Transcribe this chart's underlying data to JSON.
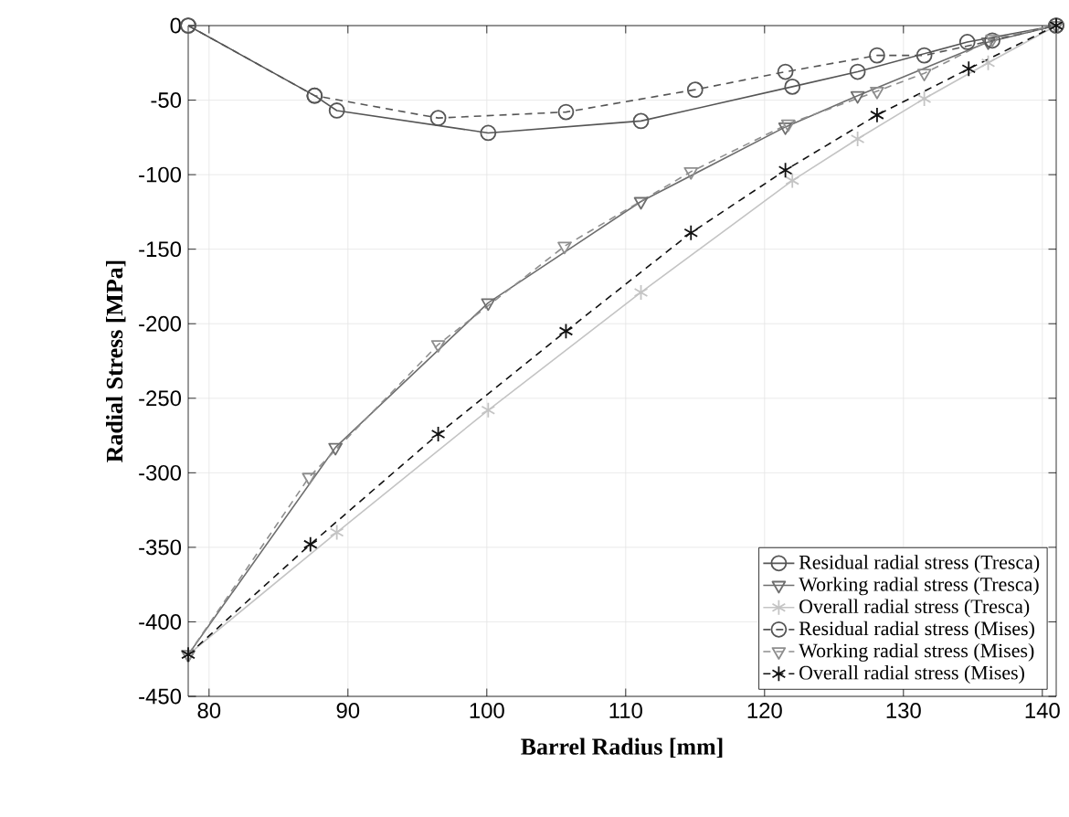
{
  "chart_data": {
    "type": "line",
    "xlabel": "Barrel Radius [mm]",
    "ylabel": "Radial Stress [MPa]",
    "xlim": [
      78.5,
      141
    ],
    "ylim": [
      -450,
      0
    ],
    "xticks": [
      80,
      90,
      100,
      110,
      120,
      130,
      140
    ],
    "yticks": [
      -450,
      -400,
      -350,
      -300,
      -250,
      -200,
      -150,
      -100,
      -50,
      0
    ],
    "grid": true,
    "legend": "bottom right",
    "series": [
      {
        "name": "Residual radial stress (Tresca)",
        "color": "#555555",
        "marker": "circle",
        "line_style": "solid",
        "x": [
          78.5,
          87.6,
          89.2,
          100.1,
          111.1,
          122.0,
          126.7,
          134.6,
          141
        ],
        "values": [
          0,
          -47,
          -57,
          -72,
          -64,
          -41,
          -31,
          -11,
          0
        ]
      },
      {
        "name": "Working radial stress (Tresca)",
        "color": "#6e6e6e",
        "marker": "triangle",
        "line_style": "solid",
        "x": [
          78.5,
          89.1,
          100.1,
          111.1,
          121.5,
          126.7,
          136.1,
          141
        ],
        "values": [
          -422,
          -283,
          -186,
          -118,
          -68,
          -47,
          -11,
          0
        ]
      },
      {
        "name": "Overall radial stress (Tresca)",
        "color": "#c4c4c4",
        "marker": "cross",
        "line_style": "solid",
        "x": [
          78.5,
          89.2,
          100.1,
          111.1,
          122.0,
          126.7,
          131.5,
          136.1,
          141
        ],
        "values": [
          -422,
          -340,
          -258,
          -179,
          -104,
          -76,
          -49,
          -25,
          0
        ]
      },
      {
        "name": "Residual radial stress (Mises)",
        "color": "#555555",
        "marker": "circle",
        "line_style": "dashed",
        "x": [
          78.5,
          87.6,
          96.5,
          105.7,
          115.0,
          121.5,
          128.1,
          131.5,
          136.4,
          141
        ],
        "values": [
          0,
          -47,
          -62,
          -58,
          -43,
          -31,
          -20,
          -20,
          -10,
          0
        ]
      },
      {
        "name": "Working radial stress (Mises)",
        "color": "#8e8e8e",
        "marker": "triangle",
        "line_style": "dashed",
        "x": [
          78.5,
          87.2,
          96.5,
          105.6,
          114.7,
          121.7,
          128.1,
          131.5,
          136.4,
          141
        ],
        "values": [
          -422,
          -303,
          -214,
          -148,
          -98,
          -66,
          -44,
          -32,
          -9,
          0
        ]
      },
      {
        "name": "Overall radial stress (Mises)",
        "color": "#111111",
        "marker": "cross",
        "line_style": "dashed",
        "x": [
          78.5,
          87.3,
          96.5,
          105.7,
          114.7,
          121.5,
          128.1,
          134.7,
          141
        ],
        "values": [
          -422,
          -348,
          -274,
          -205,
          -139,
          -97,
          -60,
          -29,
          0
        ]
      }
    ]
  }
}
